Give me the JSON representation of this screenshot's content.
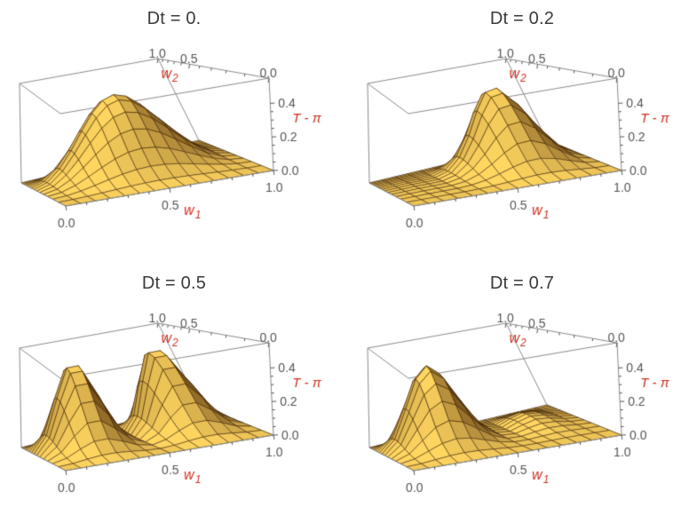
{
  "page": {
    "background": "#ffffff"
  },
  "colors": {
    "axis_label_red": "#cf2e1e",
    "tick_text": "#545454",
    "box_edge": "#8a8a8a",
    "mesh_line": "rgba(62,34,6,0.8)",
    "surface_bright": "#ffd660",
    "surface_dark": "#462406",
    "title_text": "#3a3a3a"
  },
  "chart_data": {
    "type": "surface",
    "layout": "2x2",
    "subplots": [
      {
        "title": "Dt = 0.",
        "dt": 0.0
      },
      {
        "title": "Dt = 0.2",
        "dt": 0.2
      },
      {
        "title": "Dt = 0.5",
        "dt": 0.5
      },
      {
        "title": "Dt = 0.7",
        "dt": 0.7
      }
    ],
    "x_axis": {
      "label": "w",
      "label_sub": "1",
      "range": [
        0,
        1
      ],
      "tick_values": [
        0,
        0.5,
        1
      ],
      "tick_labels": [
        "0.0",
        "0.5",
        "1.0"
      ],
      "minor_step": 0.1
    },
    "y_axis": {
      "label": "w",
      "label_sub": "2",
      "range": [
        0,
        1
      ],
      "tick_values": [
        0,
        0.5,
        1
      ],
      "tick_labels": [
        "0.0",
        "0.5",
        "1.0"
      ],
      "minor_step": 0.1
    },
    "z_axis": {
      "label": "T - π",
      "range": [
        0,
        0.55
      ],
      "tick_values": [
        0,
        0.2,
        0.4
      ],
      "tick_labels": [
        "0.0",
        "0.2",
        "0.4"
      ],
      "minor_step": 0.05
    },
    "surface": {
      "amplitude": 0.45,
      "normalized_per_plot": true,
      "mesh_cells": 14,
      "formula_js": "Math.pow(Math.cos(Math.PI*dt)*Math.sin(Math.PI*x)-Math.sin(Math.PI*dt)*Math.sin(2*Math.PI*x),2)*Math.pow(Math.sin(Math.PI*y),2)"
    }
  }
}
